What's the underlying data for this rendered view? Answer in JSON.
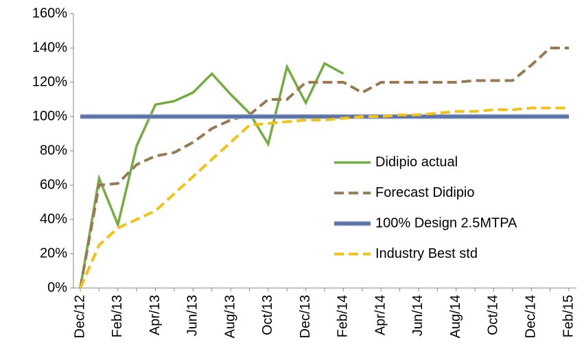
{
  "chart_data": {
    "type": "line",
    "categories": [
      "Dec/12",
      null,
      "Feb/13",
      null,
      "Apr/13",
      null,
      "Jun/13",
      null,
      "Aug/13",
      null,
      "Oct/13",
      null,
      "Dec/13",
      null,
      "Feb/14",
      null,
      "Apr/14",
      null,
      "Jun/14",
      null,
      "Aug/14",
      null,
      "Oct/14",
      null,
      "Dec/14",
      null,
      "Feb/15"
    ],
    "series": [
      {
        "name": "Didipio actual",
        "color": "#72ad3f",
        "dash": false,
        "values": [
          0,
          64,
          37,
          83,
          107,
          109,
          114,
          125,
          113,
          102,
          84,
          129,
          108,
          131,
          125,
          null,
          null,
          null,
          null,
          null,
          null,
          null,
          null,
          null,
          null,
          null,
          null
        ]
      },
      {
        "name": "Forecast Didipio",
        "color": "#977a53",
        "dash": true,
        "values": [
          0,
          60,
          61,
          72,
          77,
          79,
          85,
          93,
          98,
          101,
          110,
          110,
          120,
          120,
          120,
          114,
          120,
          120,
          120,
          120,
          120,
          121,
          121,
          121,
          130,
          140,
          140
        ]
      },
      {
        "name": "100% Design 2.5MTPA",
        "color": "#5b73a6",
        "dash": false,
        "values": [
          100,
          100,
          100,
          100,
          100,
          100,
          100,
          100,
          100,
          100,
          100,
          100,
          100,
          100,
          100,
          100,
          100,
          100,
          100,
          100,
          100,
          100,
          100,
          100,
          100,
          100,
          100
        ]
      },
      {
        "name": "Industry Best std",
        "color": "#f2c314",
        "dash": true,
        "values": [
          0,
          25,
          35,
          40,
          45,
          55,
          65,
          75,
          85,
          95,
          96,
          97,
          98,
          98,
          99,
          100,
          100,
          101,
          101,
          102,
          103,
          103,
          104,
          104,
          105,
          105,
          105
        ]
      }
    ],
    "ylim": [
      0,
      160
    ],
    "yticks": [
      {
        "value": 0,
        "label": "0%"
      },
      {
        "value": 20,
        "label": "20%"
      },
      {
        "value": 40,
        "label": "40%"
      },
      {
        "value": 60,
        "label": "60%"
      },
      {
        "value": 80,
        "label": "80%"
      },
      {
        "value": 100,
        "label": "100%"
      },
      {
        "value": 120,
        "label": "120%"
      },
      {
        "value": 140,
        "label": "140%"
      },
      {
        "value": 160,
        "label": "160%"
      }
    ],
    "grid": false
  }
}
